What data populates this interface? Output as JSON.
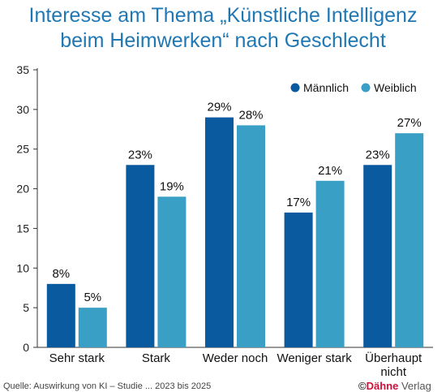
{
  "title_line1": "Interesse am Thema „Künstliche Intelligenz",
  "title_line2": "beim Heimwerken“ nach Geschlecht",
  "source": "Quelle: Auswirkung von KI – Studie ... 2023 bis 2025",
  "logo_symbol": "©",
  "logo_brand": "Dähne",
  "logo_suffix": " Verlag",
  "colors": {
    "maennlich": "#0a5a9f",
    "weiblich": "#3a9fc4",
    "axis": "#333333",
    "grid": "#222222"
  },
  "chart_data": {
    "type": "bar",
    "title": "Interesse am Thema „Künstliche Intelligenz beim Heimwerken“ nach Geschlecht",
    "xlabel": "",
    "ylabel": "",
    "ylim": [
      0,
      35
    ],
    "yticks": [
      0,
      5,
      10,
      15,
      20,
      25,
      30,
      35
    ],
    "grid": false,
    "legend": "top-right",
    "categories": [
      "Sehr stark",
      "Stark",
      "Weder noch",
      "Weniger stark",
      "Überhaupt nicht"
    ],
    "category_lines": [
      [
        "Sehr stark"
      ],
      [
        "Stark"
      ],
      [
        "Weder noch"
      ],
      [
        "Weniger stark"
      ],
      [
        "Überhaupt",
        "nicht"
      ]
    ],
    "series": [
      {
        "name": "Männlich",
        "values": [
          8,
          23,
          29,
          17,
          23
        ],
        "labels": [
          "8%",
          "23%",
          "29%",
          "17%",
          "23%"
        ]
      },
      {
        "name": "Weiblich",
        "values": [
          5,
          19,
          28,
          21,
          27
        ],
        "labels": [
          "5%",
          "19%",
          "28%",
          "21%",
          "27%"
        ]
      }
    ]
  }
}
